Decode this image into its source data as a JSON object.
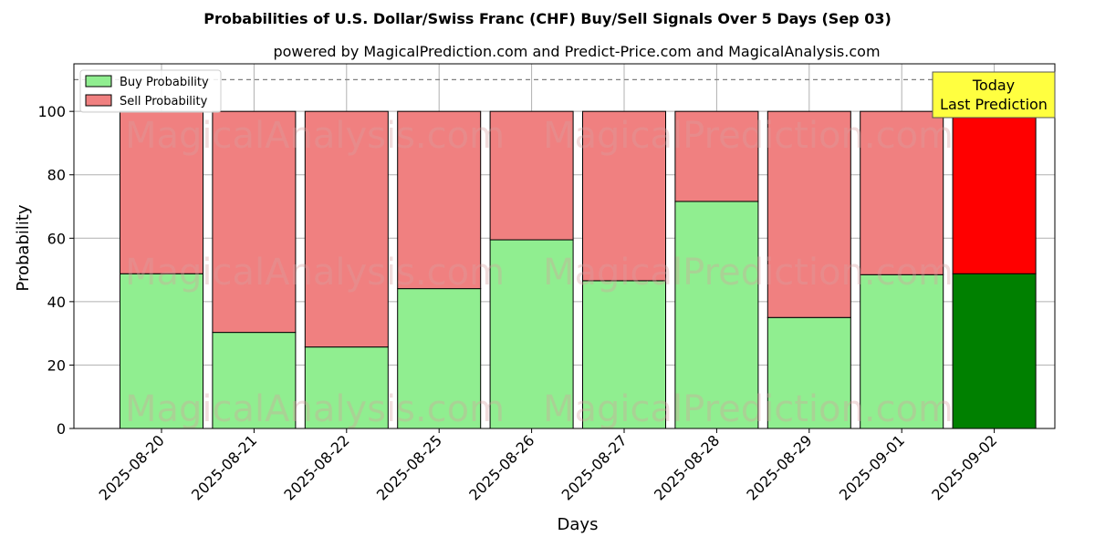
{
  "chart_data": {
    "type": "bar",
    "title": "Probabilities of U.S. Dollar/Swiss Franc (CHF) Buy/Sell Signals Over 5 Days (Sep 03)",
    "subtitle": "powered by MagicalPrediction.com and Predict-Price.com and MagicalAnalysis.com",
    "xlabel": "Days",
    "ylabel": "Probability",
    "ylim": [
      0,
      115
    ],
    "yticks": [
      0,
      20,
      40,
      60,
      80,
      100
    ],
    "grid": true,
    "legend_position": "top-left",
    "stacked": true,
    "categories": [
      "2025-08-20",
      "2025-08-21",
      "2025-08-22",
      "2025-08-25",
      "2025-08-26",
      "2025-08-27",
      "2025-08-28",
      "2025-08-29",
      "2025-09-01",
      "2025-09-02"
    ],
    "series": [
      {
        "name": "Buy Probability",
        "color": "#90ee90",
        "highlight_color": "#008000",
        "values": [
          48.8,
          30.3,
          25.7,
          44.1,
          59.5,
          46.6,
          71.6,
          35.0,
          48.5,
          48.8
        ]
      },
      {
        "name": "Sell Probability",
        "color": "#f08080",
        "highlight_color": "#ff0000",
        "values": [
          51.2,
          69.7,
          74.3,
          55.9,
          40.5,
          53.4,
          28.4,
          65.0,
          51.5,
          51.2
        ]
      }
    ],
    "reference_line": {
      "y": 110,
      "style": "dashed"
    },
    "annotation": {
      "lines": [
        "Today",
        "Last Prediction"
      ],
      "category": "2025-09-02",
      "background": "#ffff40"
    },
    "watermarks": [
      "MagicalAnalysis.com",
      "MagicalPrediction.com"
    ]
  }
}
